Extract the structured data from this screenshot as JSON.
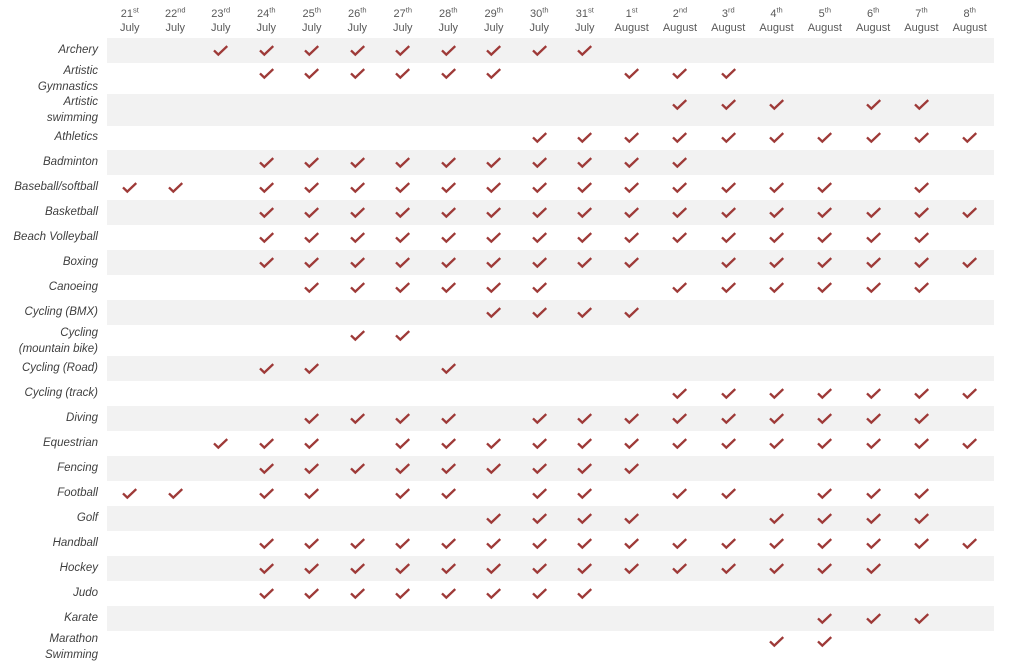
{
  "colors": {
    "accent": "#9e3a38",
    "stripe": "#f2f2f2",
    "hdr": "#595959",
    "label": "#3f3f3f"
  },
  "icons": {
    "check_icon": "✓"
  },
  "chart_data": {
    "type": "table",
    "description_of_marks": "red check = competition day",
    "columns": [
      {
        "day": "21",
        "suffix": "st",
        "month": "July"
      },
      {
        "day": "22",
        "suffix": "nd",
        "month": "July"
      },
      {
        "day": "23",
        "suffix": "rd",
        "month": "July"
      },
      {
        "day": "24",
        "suffix": "th",
        "month": "July"
      },
      {
        "day": "25",
        "suffix": "th",
        "month": "July"
      },
      {
        "day": "26",
        "suffix": "th",
        "month": "July"
      },
      {
        "day": "27",
        "suffix": "th",
        "month": "July"
      },
      {
        "day": "28",
        "suffix": "th",
        "month": "July"
      },
      {
        "day": "29",
        "suffix": "th",
        "month": "July"
      },
      {
        "day": "30",
        "suffix": "th",
        "month": "July"
      },
      {
        "day": "31",
        "suffix": "st",
        "month": "July"
      },
      {
        "day": "1",
        "suffix": "st",
        "month": "August"
      },
      {
        "day": "2",
        "suffix": "nd",
        "month": "August"
      },
      {
        "day": "3",
        "suffix": "rd",
        "month": "August"
      },
      {
        "day": "4",
        "suffix": "th",
        "month": "August"
      },
      {
        "day": "5",
        "suffix": "th",
        "month": "August"
      },
      {
        "day": "6",
        "suffix": "th",
        "month": "August"
      },
      {
        "day": "7",
        "suffix": "th",
        "month": "August"
      },
      {
        "day": "8",
        "suffix": "th",
        "month": "August"
      }
    ],
    "rows": [
      {
        "sport": "Archery",
        "label_lines": [
          "Archery"
        ],
        "checks": [
          0,
          0,
          1,
          1,
          1,
          1,
          1,
          1,
          1,
          1,
          1,
          0,
          0,
          0,
          0,
          0,
          0,
          0,
          0
        ]
      },
      {
        "sport": "Artistic Gymnastics",
        "label_lines": [
          "Artistic",
          "Gymnastics"
        ],
        "checks": [
          0,
          0,
          0,
          1,
          1,
          1,
          1,
          1,
          1,
          0,
          0,
          1,
          1,
          1,
          0,
          0,
          0,
          0,
          0
        ]
      },
      {
        "sport": "Artistic swimming",
        "label_lines": [
          "Artistic",
          "swimming"
        ],
        "checks": [
          0,
          0,
          0,
          0,
          0,
          0,
          0,
          0,
          0,
          0,
          0,
          0,
          1,
          1,
          1,
          0,
          1,
          1,
          0
        ]
      },
      {
        "sport": "Athletics",
        "label_lines": [
          "Athletics"
        ],
        "checks": [
          0,
          0,
          0,
          0,
          0,
          0,
          0,
          0,
          0,
          1,
          1,
          1,
          1,
          1,
          1,
          1,
          1,
          1,
          1
        ]
      },
      {
        "sport": "Badminton",
        "label_lines": [
          "Badminton"
        ],
        "checks": [
          0,
          0,
          0,
          1,
          1,
          1,
          1,
          1,
          1,
          1,
          1,
          1,
          1,
          0,
          0,
          0,
          0,
          0,
          0
        ]
      },
      {
        "sport": "Baseball/softball",
        "label_lines": [
          "Baseball/softball"
        ],
        "checks": [
          1,
          1,
          0,
          1,
          1,
          1,
          1,
          1,
          1,
          1,
          1,
          1,
          1,
          1,
          1,
          1,
          0,
          1,
          0
        ]
      },
      {
        "sport": "Basketball",
        "label_lines": [
          "Basketball"
        ],
        "checks": [
          0,
          0,
          0,
          1,
          1,
          1,
          1,
          1,
          1,
          1,
          1,
          1,
          1,
          1,
          1,
          1,
          1,
          1,
          1
        ]
      },
      {
        "sport": "Beach Volleyball",
        "label_lines": [
          "Beach Volleyball"
        ],
        "checks": [
          0,
          0,
          0,
          1,
          1,
          1,
          1,
          1,
          1,
          1,
          1,
          1,
          1,
          1,
          1,
          1,
          1,
          1,
          0
        ]
      },
      {
        "sport": "Boxing",
        "label_lines": [
          "Boxing"
        ],
        "checks": [
          0,
          0,
          0,
          1,
          1,
          1,
          1,
          1,
          1,
          1,
          1,
          1,
          0,
          1,
          1,
          1,
          1,
          1,
          1
        ]
      },
      {
        "sport": "Canoeing",
        "label_lines": [
          "Canoeing"
        ],
        "checks": [
          0,
          0,
          0,
          0,
          1,
          1,
          1,
          1,
          1,
          1,
          0,
          0,
          1,
          1,
          1,
          1,
          1,
          1,
          0
        ]
      },
      {
        "sport": "Cycling (BMX)",
        "label_lines": [
          "Cycling (BMX)"
        ],
        "checks": [
          0,
          0,
          0,
          0,
          0,
          0,
          0,
          0,
          1,
          1,
          1,
          1,
          0,
          0,
          0,
          0,
          0,
          0,
          0
        ]
      },
      {
        "sport": "Cycling (mountain bike)",
        "label_lines": [
          "Cycling",
          "(mountain bike)"
        ],
        "checks": [
          0,
          0,
          0,
          0,
          0,
          1,
          1,
          0,
          0,
          0,
          0,
          0,
          0,
          0,
          0,
          0,
          0,
          0,
          0
        ]
      },
      {
        "sport": "Cycling (Road)",
        "label_lines": [
          "Cycling (Road)"
        ],
        "checks": [
          0,
          0,
          0,
          1,
          1,
          0,
          0,
          1,
          0,
          0,
          0,
          0,
          0,
          0,
          0,
          0,
          0,
          0,
          0
        ]
      },
      {
        "sport": "Cycling (track)",
        "label_lines": [
          "Cycling (track)"
        ],
        "checks": [
          0,
          0,
          0,
          0,
          0,
          0,
          0,
          0,
          0,
          0,
          0,
          0,
          1,
          1,
          1,
          1,
          1,
          1,
          1
        ]
      },
      {
        "sport": "Diving",
        "label_lines": [
          "Diving"
        ],
        "checks": [
          0,
          0,
          0,
          0,
          1,
          1,
          1,
          1,
          0,
          1,
          1,
          1,
          1,
          1,
          1,
          1,
          1,
          1,
          0
        ]
      },
      {
        "sport": "Equestrian",
        "label_lines": [
          "Equestrian"
        ],
        "checks": [
          0,
          0,
          1,
          1,
          1,
          0,
          1,
          1,
          1,
          1,
          1,
          1,
          1,
          1,
          1,
          1,
          1,
          1,
          1
        ]
      },
      {
        "sport": "Fencing",
        "label_lines": [
          "Fencing"
        ],
        "checks": [
          0,
          0,
          0,
          1,
          1,
          1,
          1,
          1,
          1,
          1,
          1,
          1,
          0,
          0,
          0,
          0,
          0,
          0,
          0
        ]
      },
      {
        "sport": "Football",
        "label_lines": [
          "Football"
        ],
        "checks": [
          1,
          1,
          0,
          1,
          1,
          0,
          1,
          1,
          0,
          1,
          1,
          0,
          1,
          1,
          0,
          1,
          1,
          1,
          0
        ]
      },
      {
        "sport": "Golf",
        "label_lines": [
          "Golf"
        ],
        "checks": [
          0,
          0,
          0,
          0,
          0,
          0,
          0,
          0,
          1,
          1,
          1,
          1,
          0,
          0,
          1,
          1,
          1,
          1,
          0
        ]
      },
      {
        "sport": "Handball",
        "label_lines": [
          "Handball"
        ],
        "checks": [
          0,
          0,
          0,
          1,
          1,
          1,
          1,
          1,
          1,
          1,
          1,
          1,
          1,
          1,
          1,
          1,
          1,
          1,
          1
        ]
      },
      {
        "sport": "Hockey",
        "label_lines": [
          "Hockey"
        ],
        "checks": [
          0,
          0,
          0,
          1,
          1,
          1,
          1,
          1,
          1,
          1,
          1,
          1,
          1,
          1,
          1,
          1,
          1,
          0,
          0
        ]
      },
      {
        "sport": "Judo",
        "label_lines": [
          "Judo"
        ],
        "checks": [
          0,
          0,
          0,
          1,
          1,
          1,
          1,
          1,
          1,
          1,
          1,
          0,
          0,
          0,
          0,
          0,
          0,
          0,
          0
        ]
      },
      {
        "sport": "Karate",
        "label_lines": [
          "Karate"
        ],
        "checks": [
          0,
          0,
          0,
          0,
          0,
          0,
          0,
          0,
          0,
          0,
          0,
          0,
          0,
          0,
          0,
          1,
          1,
          1,
          0
        ]
      },
      {
        "sport": "Marathon Swimming",
        "label_lines": [
          "Marathon",
          "Swimming"
        ],
        "checks": [
          0,
          0,
          0,
          0,
          0,
          0,
          0,
          0,
          0,
          0,
          0,
          0,
          0,
          0,
          1,
          1,
          0,
          0,
          0
        ]
      }
    ]
  }
}
